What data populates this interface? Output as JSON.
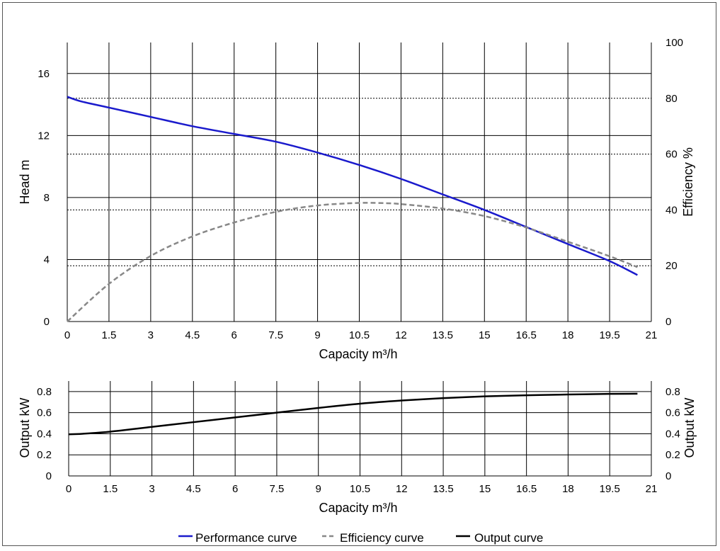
{
  "chart_data": [
    {
      "type": "line",
      "name": "head-efficiency-chart",
      "xlabel": "Capacity m³/h",
      "ylabel": "Head m",
      "y2label": "Efficiency %",
      "xlim": [
        0,
        21
      ],
      "ylim": [
        0,
        18
      ],
      "y2lim": [
        0,
        100
      ],
      "x_ticks": [
        "0",
        "1.5",
        "3",
        "4.5",
        "6",
        "7.5",
        "9",
        "10.5",
        "12",
        "13.5",
        "15",
        "16.5",
        "18",
        "19.5",
        "21"
      ],
      "y_ticks": [
        "0",
        "4",
        "8",
        "12",
        "16"
      ],
      "y2_ticks": [
        "0",
        "20",
        "40",
        "60",
        "80",
        "100"
      ],
      "series": [
        {
          "name": "Performance curve",
          "axis": "left",
          "color": "#1a1acc",
          "dash": "solid",
          "x": [
            0,
            0.5,
            1.5,
            3,
            4.5,
            6,
            7.5,
            9,
            10.5,
            12,
            13.5,
            15,
            16.5,
            18,
            19.5,
            20.5
          ],
          "y": [
            14.5,
            14.2,
            13.8,
            13.2,
            12.6,
            12.1,
            11.6,
            10.9,
            10.1,
            9.2,
            8.2,
            7.2,
            6.1,
            5.0,
            3.9,
            3.0
          ]
        },
        {
          "name": "Efficiency curve",
          "axis": "right",
          "color": "#888888",
          "dash": "dashed",
          "x": [
            0,
            1.5,
            3,
            4.5,
            6,
            7.5,
            9,
            10.5,
            11.5,
            12,
            13.5,
            15,
            16.5,
            18,
            19.5,
            20.5
          ],
          "y": [
            0,
            13.5,
            23.5,
            30.5,
            35.5,
            39.3,
            41.6,
            42.5,
            42.4,
            42.1,
            40.5,
            37.8,
            33.7,
            28.6,
            23.4,
            19.5
          ]
        }
      ]
    },
    {
      "type": "line",
      "name": "output-chart",
      "xlabel": "Capacity m³/h",
      "ylabel": "Output kW",
      "y2label": "Output kW",
      "xlim": [
        0,
        21
      ],
      "ylim": [
        0,
        0.9
      ],
      "x_ticks": [
        "0",
        "1.5",
        "3",
        "4.5",
        "6",
        "7.5",
        "9",
        "10.5",
        "12",
        "13.5",
        "15",
        "16.5",
        "18",
        "19.5",
        "21"
      ],
      "y_ticks": [
        "0",
        "0.2",
        "0.4",
        "0.6",
        "0.8"
      ],
      "y2_ticks": [
        "0",
        "0.2",
        "0.4",
        "0.6",
        "0.8"
      ],
      "series": [
        {
          "name": "Output curve",
          "axis": "left",
          "color": "#000000",
          "dash": "solid",
          "x": [
            0,
            0.5,
            1.5,
            3,
            4.5,
            6,
            7.5,
            9,
            10.5,
            12,
            13.5,
            15,
            16.5,
            18,
            19.5,
            20.5
          ],
          "y": [
            0.395,
            0.4,
            0.42,
            0.465,
            0.51,
            0.555,
            0.6,
            0.645,
            0.685,
            0.715,
            0.738,
            0.755,
            0.765,
            0.772,
            0.778,
            0.78
          ]
        }
      ]
    }
  ],
  "legend": [
    {
      "label": "Performance curve",
      "color": "#1a1acc",
      "dash": "solid"
    },
    {
      "label": "Efficiency curve",
      "color": "#888888",
      "dash": "dashed"
    },
    {
      "label": "Output curve",
      "color": "#000000",
      "dash": "solid"
    }
  ]
}
